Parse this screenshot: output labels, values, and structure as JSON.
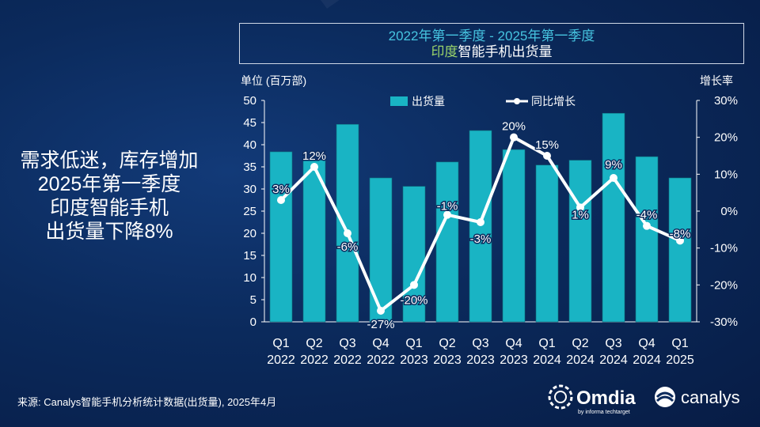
{
  "title": {
    "line1": "2022年第一季度 - 2025年第一季度",
    "line2_accent": "印度",
    "line2_rest": "智能手机出货量"
  },
  "headline": [
    "需求低迷，库存增加",
    "2025年第一季度",
    "印度智能手机",
    "出货量下降8%"
  ],
  "source": "来源: Canalys智能手机分析统计数据(出货量), 2025年4月",
  "logos": {
    "omdia": "Omdia",
    "omdia_sub": "by informa techtarget",
    "canalys": "canalys"
  },
  "colors": {
    "bar": "#19b4c4",
    "line": "#ffffff",
    "title_accent": "#46c4e0",
    "india": "#9bd46a"
  },
  "chart_data": {
    "type": "bar",
    "categories": [
      [
        "Q1",
        "2022"
      ],
      [
        "Q2",
        "2022"
      ],
      [
        "Q3",
        "2022"
      ],
      [
        "Q4",
        "2022"
      ],
      [
        "Q1",
        "2023"
      ],
      [
        "Q2",
        "2023"
      ],
      [
        "Q3",
        "2023"
      ],
      [
        "Q4",
        "2023"
      ],
      [
        "Q1",
        "2024"
      ],
      [
        "Q2",
        "2024"
      ],
      [
        "Q3",
        "2024"
      ],
      [
        "Q4",
        "2024"
      ],
      [
        "Q1",
        "2025"
      ]
    ],
    "series": [
      {
        "name": "出货量",
        "type": "bar",
        "axis": "left",
        "values": [
          38.4,
          36.5,
          44.6,
          32.5,
          30.6,
          36.1,
          43.2,
          38.9,
          35.4,
          36.5,
          47.1,
          37.3,
          32.5
        ]
      },
      {
        "name": "同比增长",
        "type": "line",
        "axis": "right",
        "values": [
          3,
          12,
          -6,
          -27,
          -20,
          -1,
          -3,
          20,
          15,
          1,
          9,
          -4,
          -8
        ],
        "labels": [
          "3%",
          "12%",
          "-6%",
          "-27%",
          "-20%",
          "-1%",
          "-3%",
          "20%",
          "15%",
          "1%",
          "9%",
          "-4%",
          "-8%"
        ]
      }
    ],
    "ylabel": "单位 (百万部)",
    "y2label": "增长率",
    "ylim": [
      0,
      50
    ],
    "yticks": [
      "0",
      "5",
      "10",
      "15",
      "20",
      "25",
      "30",
      "35",
      "40",
      "45",
      "50"
    ],
    "y2lim": [
      -30,
      30
    ],
    "y2ticks": [
      "-30%",
      "-20%",
      "-10%",
      "0%",
      "10%",
      "20%",
      "30%"
    ],
    "legend_position": "top"
  }
}
